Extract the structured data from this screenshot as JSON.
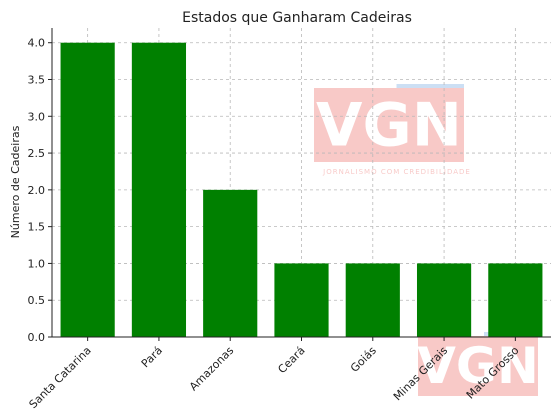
{
  "chart_data": {
    "type": "bar",
    "title": "Estados que Ganharam Cadeiras",
    "xlabel": "",
    "ylabel": "Número de Cadeiras",
    "categories": [
      "Santa Catarina",
      "Pará",
      "Amazonas",
      "Ceará",
      "Goiás",
      "Minas Gerais",
      "Mato Grosso"
    ],
    "values": [
      4,
      4,
      2,
      1,
      1,
      1,
      1
    ],
    "ylim": [
      0,
      4.2
    ],
    "yticks": [
      "0.0",
      "0.5",
      "1.0",
      "1.5",
      "2.0",
      "2.5",
      "3.0",
      "3.5",
      "4.0"
    ],
    "bar_color": "#008000",
    "grid": true,
    "grid_style": "dashed"
  },
  "watermark": {
    "logo_text": "VGN",
    "tagline": "JORNALISMO COM CREDIBILIDADE",
    "color": "#e8403a",
    "accent": "#4a8fd8"
  }
}
